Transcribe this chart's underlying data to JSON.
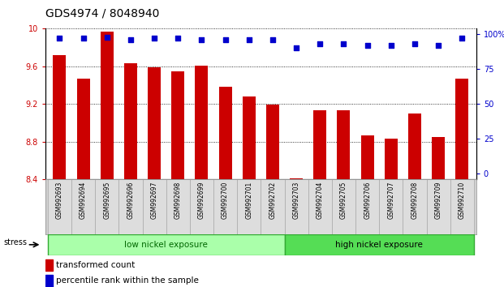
{
  "title": "GDS4974 / 8048940",
  "samples": [
    "GSM992693",
    "GSM992694",
    "GSM992695",
    "GSM992696",
    "GSM992697",
    "GSM992698",
    "GSM992699",
    "GSM992700",
    "GSM992701",
    "GSM992702",
    "GSM992703",
    "GSM992704",
    "GSM992705",
    "GSM992706",
    "GSM992707",
    "GSM992708",
    "GSM992709",
    "GSM992710"
  ],
  "bar_values": [
    9.72,
    9.47,
    9.97,
    9.63,
    9.59,
    9.55,
    9.61,
    9.38,
    9.28,
    9.19,
    8.41,
    9.13,
    9.13,
    8.87,
    8.83,
    9.1,
    8.85,
    9.47
  ],
  "percentile_values": [
    97,
    97,
    98,
    96,
    97,
    97,
    96,
    96,
    96,
    96,
    90,
    93,
    93,
    92,
    92,
    93,
    92,
    97
  ],
  "bar_color": "#cc0000",
  "percentile_color": "#0000cc",
  "ymin": 8.4,
  "ymax": 10.0,
  "yticks": [
    8.4,
    8.8,
    9.2,
    9.6,
    10.0
  ],
  "ytick_labels": [
    "8.4",
    "8.8",
    "9.2",
    "9.6",
    "10"
  ],
  "right_yticks": [
    0,
    25,
    50,
    75,
    100
  ],
  "right_ytick_labels": [
    "0",
    "25",
    "50",
    "75",
    "100%"
  ],
  "low_nickel_count": 10,
  "high_nickel_count": 8,
  "low_nickel_label": "low nickel exposure",
  "high_nickel_label": "high nickel exposure",
  "stress_label": "stress",
  "low_nickel_color": "#aaffaa",
  "high_nickel_color": "#55dd55",
  "xlabel_area_color": "#d0d0d0",
  "legend_bar_label": "transformed count",
  "legend_pct_label": "percentile rank within the sample",
  "background_color": "#ffffff",
  "title_fontsize": 10,
  "tick_fontsize": 7,
  "bar_bottom": 8.4
}
